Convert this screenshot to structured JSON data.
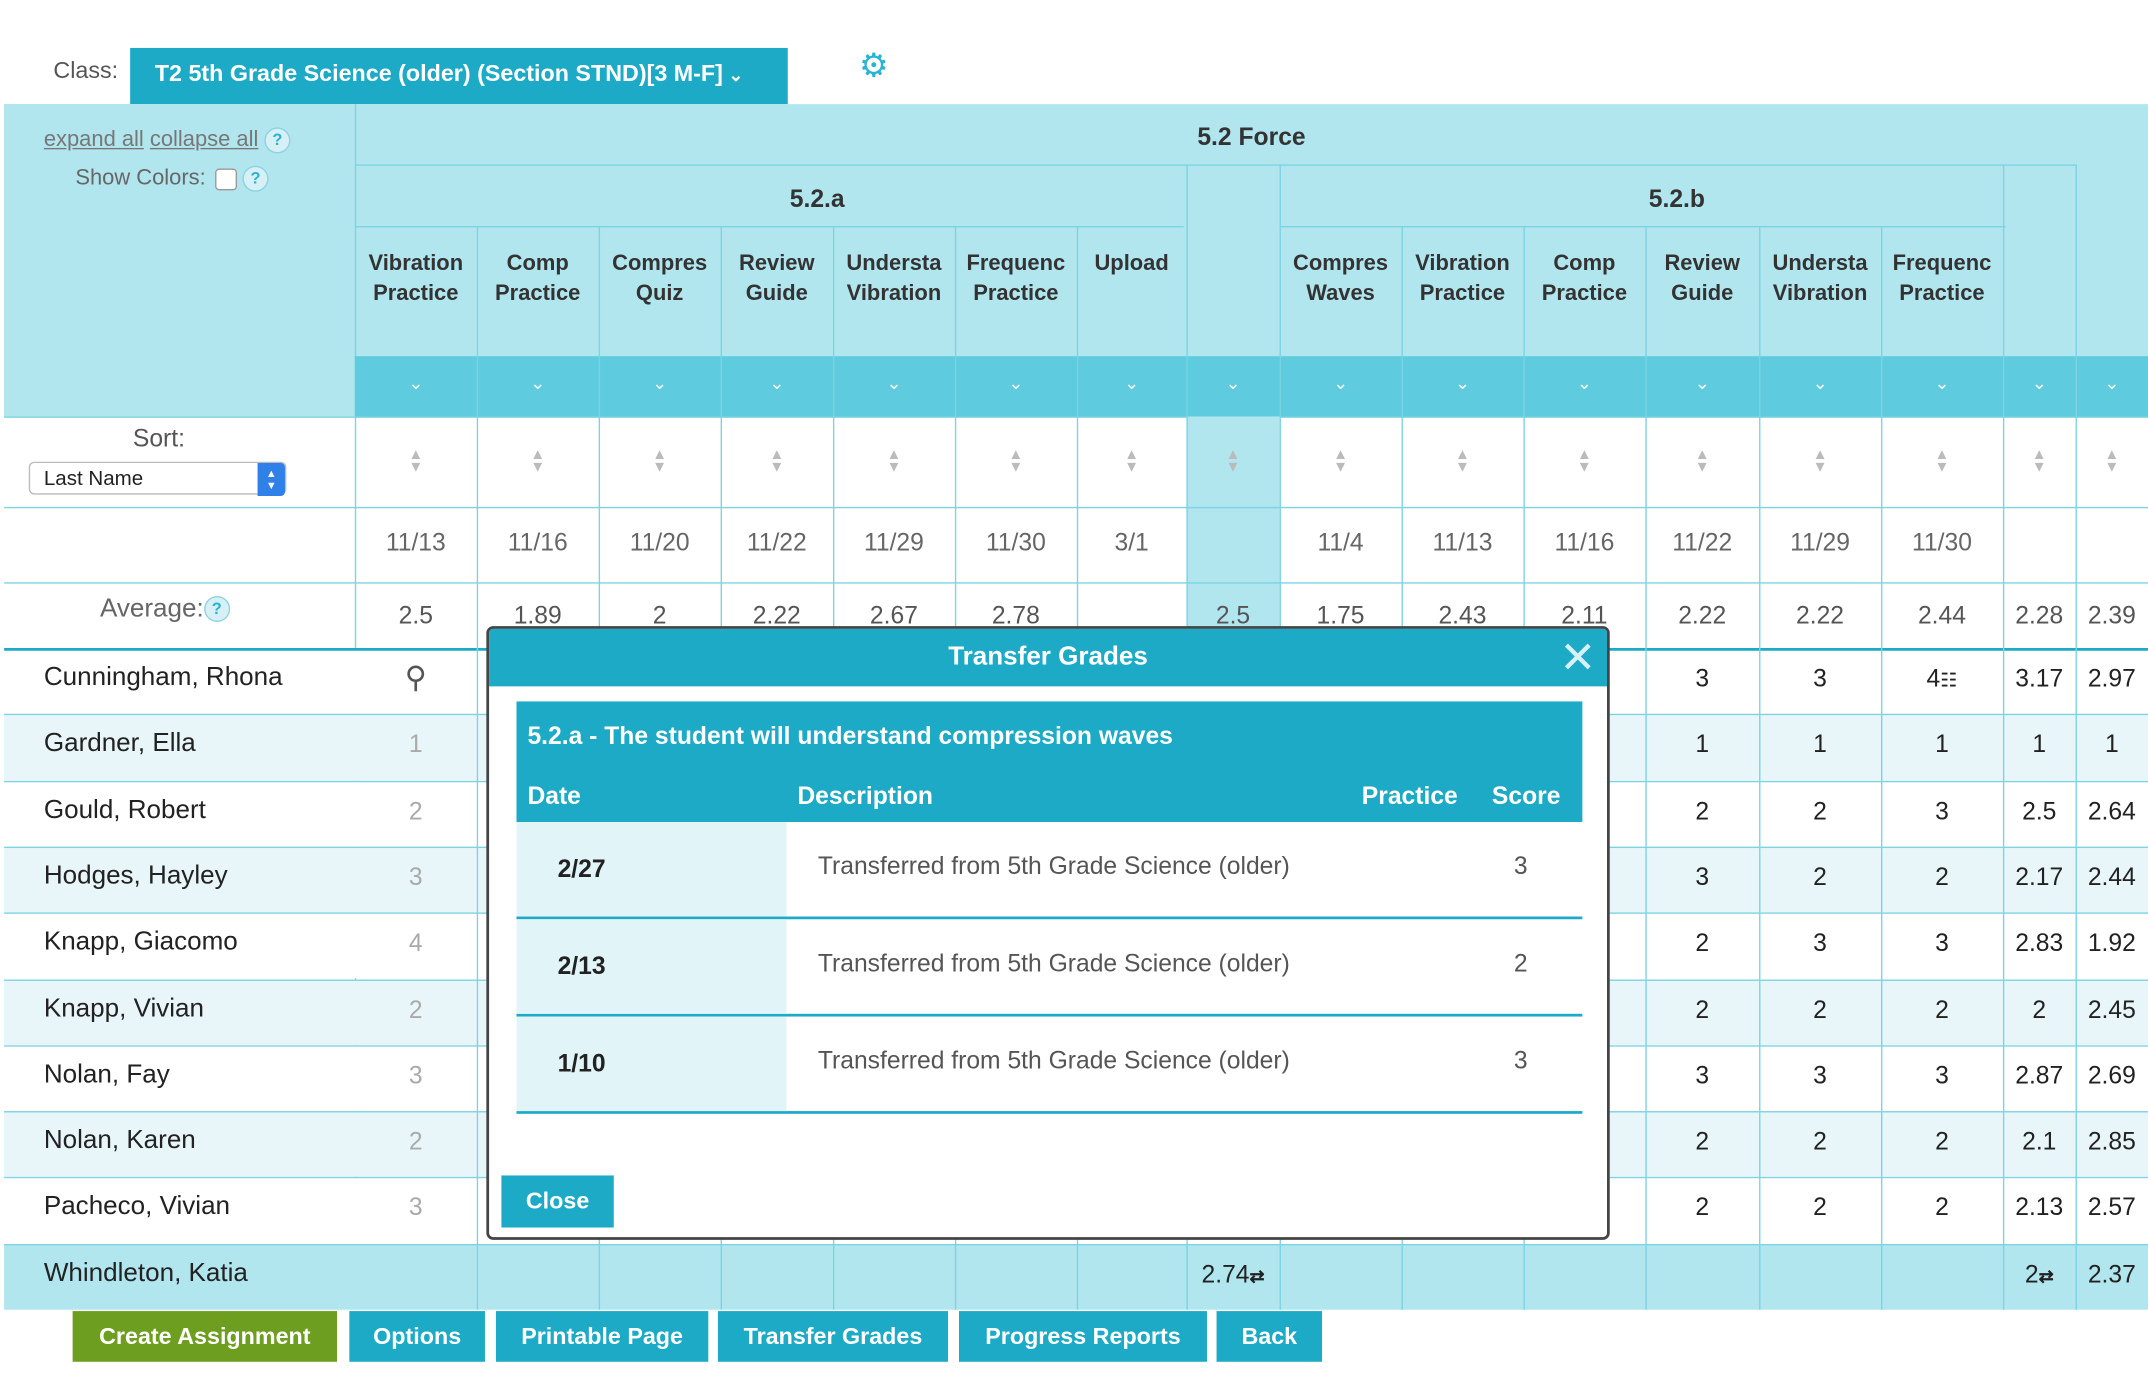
{
  "header": {
    "class_label": "Class:",
    "class_value": "T2 5th Grade Science (older) (Section STND)[3 M-F]"
  },
  "controls": {
    "expand_all": "expand all",
    "collapse_all": "collapse all",
    "show_colors": "Show Colors:",
    "sort_label": "Sort:",
    "sort_value": "Last Name",
    "average_label": "Average:",
    "help": "?"
  },
  "groups": {
    "standard": "5.2 Force",
    "sub_a": "5.2.a",
    "sub_b": "5.2.b"
  },
  "columns": [
    {
      "l1": "Vibration",
      "l2": "Practice",
      "date": "11/13",
      "avg": "2.5"
    },
    {
      "l1": "Comp",
      "l2": "Practice",
      "date": "11/16",
      "avg": "1.89"
    },
    {
      "l1": "Compres",
      "l2": "Quiz",
      "date": "11/20",
      "avg": "2"
    },
    {
      "l1": "Review",
      "l2": "Guide",
      "date": "11/22",
      "avg": "2.22"
    },
    {
      "l1": "Understa",
      "l2": "Vibration",
      "date": "11/29",
      "avg": "2.67"
    },
    {
      "l1": "Frequenc",
      "l2": "Practice",
      "date": "11/30",
      "avg": "2.78"
    },
    {
      "l1": "Upload",
      "l2": "",
      "date": "3/1",
      "avg": ""
    },
    {
      "l1": "",
      "l2": "",
      "date": "",
      "avg": "2.5"
    },
    {
      "l1": "Compres",
      "l2": "Waves",
      "date": "11/4",
      "avg": "1.75"
    },
    {
      "l1": "Vibration",
      "l2": "Practice",
      "date": "11/13",
      "avg": "2.43"
    },
    {
      "l1": "Comp",
      "l2": "Practice",
      "date": "11/16",
      "avg": "2.11"
    },
    {
      "l1": "Review",
      "l2": "Guide",
      "date": "11/22",
      "avg": "2.22"
    },
    {
      "l1": "Understa",
      "l2": "Vibration",
      "date": "11/29",
      "avg": "2.22"
    },
    {
      "l1": "Frequenc",
      "l2": "Practice",
      "date": "11/30",
      "avg": "2.44"
    },
    {
      "l1": "",
      "l2": "",
      "date": "",
      "avg": "2.28"
    },
    {
      "l1": "",
      "l2": "",
      "date": "",
      "avg": "2.39"
    }
  ],
  "students": [
    {
      "name": "Cunningham, Rhona",
      "first": "",
      "c11": "3",
      "c12": "3",
      "c13": "4",
      "c14": "3.17",
      "c15": "2.97"
    },
    {
      "name": "Gardner, Ella",
      "first": "1",
      "c11": "1",
      "c12": "1",
      "c13": "1",
      "c14": "1",
      "c15": "1"
    },
    {
      "name": "Gould, Robert",
      "first": "2",
      "c11": "2",
      "c12": "2",
      "c13": "3",
      "c14": "2.5",
      "c15": "2.64"
    },
    {
      "name": "Hodges, Hayley",
      "first": "3",
      "c11": "3",
      "c12": "2",
      "c13": "2",
      "c14": "2.17",
      "c15": "2.44"
    },
    {
      "name": "Knapp, Giacomo",
      "first": "4",
      "c11": "2",
      "c12": "3",
      "c13": "3",
      "c14": "2.83",
      "c15": "1.92"
    },
    {
      "name": "Knapp, Vivian",
      "first": "2",
      "c11": "2",
      "c12": "2",
      "c13": "2",
      "c14": "2",
      "c15": "2.45"
    },
    {
      "name": "Nolan, Fay",
      "first": "3",
      "c11": "3",
      "c12": "3",
      "c13": "3",
      "c14": "2.87",
      "c15": "2.69"
    },
    {
      "name": "Nolan, Karen",
      "first": "2",
      "c11": "2",
      "c12": "2",
      "c13": "2",
      "c14": "2.1",
      "c15": "2.85"
    },
    {
      "name": "Pacheco, Vivian",
      "first": "3",
      "c11": "2",
      "c12": "2",
      "c13": "2",
      "c14": "2.13",
      "c15": "2.57"
    },
    {
      "name": "Whindleton, Katia",
      "first": "",
      "c7": "2.74",
      "c11": "",
      "c12": "",
      "c13": "",
      "c14": "2",
      "c15": "2.37"
    }
  ],
  "buttons": {
    "create": "Create Assignment",
    "options": "Options",
    "printable": "Printable Page",
    "transfer": "Transfer Grades",
    "progress": "Progress Reports",
    "back": "Back"
  },
  "modal": {
    "title": "Transfer Grades",
    "standard": "5.2.a - The student will understand compression waves",
    "col_date": "Date",
    "col_desc": "Description",
    "col_practice": "Practice",
    "col_score": "Score",
    "rows": [
      {
        "date": "2/27",
        "desc": "Transferred from 5th Grade Science (older)",
        "score": "3"
      },
      {
        "date": "2/13",
        "desc": "Transferred from 5th Grade Science (older)",
        "score": "2"
      },
      {
        "date": "1/10",
        "desc": "Transferred from 5th Grade Science (older)",
        "score": "3"
      }
    ],
    "close": "Close"
  },
  "colors": {
    "accent": "#1caac7",
    "header_bg": "#b1e6ef",
    "chevron_row": "#5fcbde",
    "row_alt": "#e8f6fa",
    "green": "#6e9e1f"
  }
}
